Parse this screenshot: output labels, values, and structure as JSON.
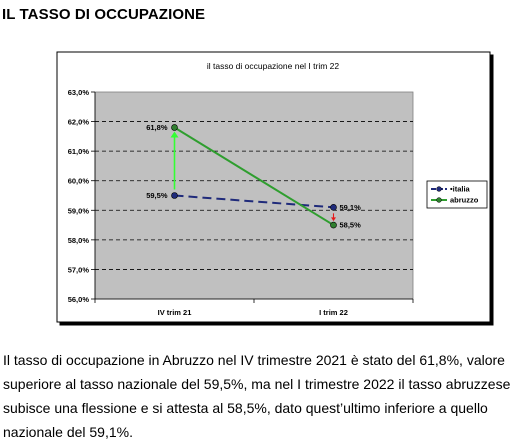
{
  "heading": "IL TASSO DI OCCUPAZIONE",
  "paragraph": "Il tasso di occupazione in Abruzzo nel IV trimestre 2021 è stato del 61,8%, valore superiore al tasso nazionale del 59,5%, ma nel I trimestre 2022 il tasso abruzzese subisce una flessione e si attesta al 58,5%, dato quest’ultimo inferiore a quello nazionale del 59,1%.",
  "chart_data": {
    "type": "line",
    "title": "il tasso di occupazione nel I trim 22",
    "categories": [
      "IV trim 21",
      "I trim 22"
    ],
    "series": [
      {
        "name": "italia",
        "values": [
          59.5,
          59.1
        ],
        "labels": [
          "59,5%",
          "59,1%"
        ],
        "color": "#1f2a7a",
        "style": "dashed",
        "marker_color": "#1f2a7a"
      },
      {
        "name": "abruzzo",
        "values": [
          61.8,
          58.5
        ],
        "labels": [
          "61,8%",
          "58,5%"
        ],
        "color": "#2f9e2f",
        "style": "solid",
        "marker_color": "#2f7f2f"
      }
    ],
    "ylim": [
      56.0,
      63.0
    ],
    "yticks": [
      56.0,
      57.0,
      58.0,
      59.0,
      60.0,
      61.0,
      62.0,
      63.0
    ],
    "ytick_labels": [
      "56,0%",
      "57,0%",
      "58,0%",
      "59,0%",
      "60,0%",
      "61,0%",
      "62,0%",
      "63,0%"
    ],
    "grid": true,
    "legend_position": "right",
    "annotations": [
      {
        "category": "IV trim 21",
        "from": 59.5,
        "to": 61.8,
        "color": "#33ff33",
        "direction": "up"
      },
      {
        "category": "I trim 22",
        "from": 59.1,
        "to": 58.5,
        "color": "#e81818",
        "direction": "down"
      }
    ],
    "legend_bullet": "•"
  }
}
